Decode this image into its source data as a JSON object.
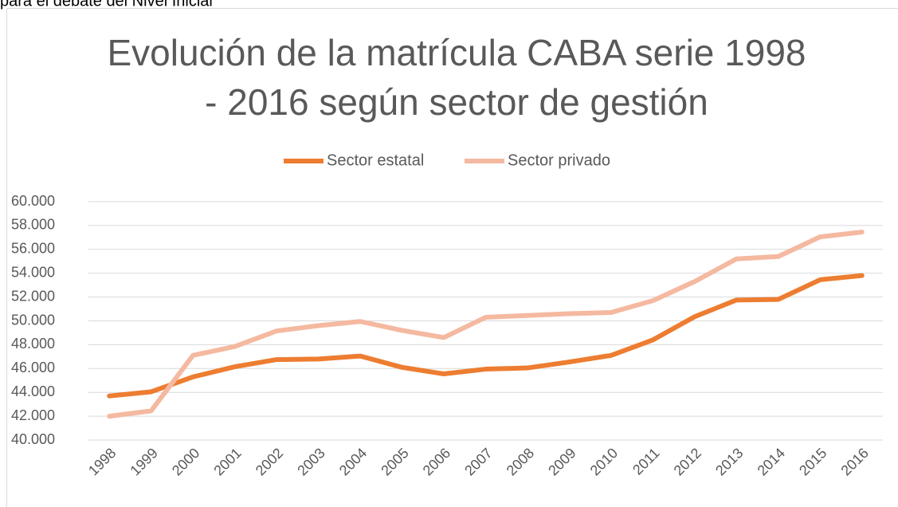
{
  "caption": "para el debate del Nivel Inicial",
  "chart_data": {
    "type": "line",
    "title": [
      "Evolución de la matrícula CABA serie 1998",
      "- 2016 según sector de gestión"
    ],
    "legend": "top",
    "grid": true,
    "categories": [
      "1998",
      "1999",
      "2000",
      "2001",
      "2002",
      "2003",
      "2004",
      "2005",
      "2006",
      "2007",
      "2008",
      "2009",
      "2010",
      "2011",
      "2012",
      "2013",
      "2014",
      "2015",
      "2016"
    ],
    "series": [
      {
        "name": "Sector estatal",
        "color": "#ed7d31",
        "values": [
          43700,
          44050,
          45300,
          46150,
          46750,
          46800,
          47050,
          46100,
          45550,
          45950,
          46050,
          46550,
          47100,
          48400,
          50350,
          51750,
          51800,
          53450,
          53800
        ]
      },
      {
        "name": "Sector privado",
        "color": "#f4b9a0",
        "values": [
          42000,
          42450,
          47100,
          47850,
          49150,
          49600,
          49950,
          49200,
          48600,
          50300,
          50450,
          50600,
          50700,
          51700,
          53300,
          55200,
          55400,
          57050,
          57450
        ]
      }
    ],
    "ylim": [
      40000,
      60000
    ],
    "yticks": [
      {
        "value": 40000,
        "label": "40.000"
      },
      {
        "value": 42000,
        "label": "42.000"
      },
      {
        "value": 44000,
        "label": "44.000"
      },
      {
        "value": 46000,
        "label": "46.000"
      },
      {
        "value": 48000,
        "label": "48.000"
      },
      {
        "value": 50000,
        "label": "50.000"
      },
      {
        "value": 52000,
        "label": "52.000"
      },
      {
        "value": 54000,
        "label": "54.000"
      },
      {
        "value": 56000,
        "label": "56.000"
      },
      {
        "value": 58000,
        "label": "58.000"
      },
      {
        "value": 60000,
        "label": "60.000"
      }
    ]
  }
}
